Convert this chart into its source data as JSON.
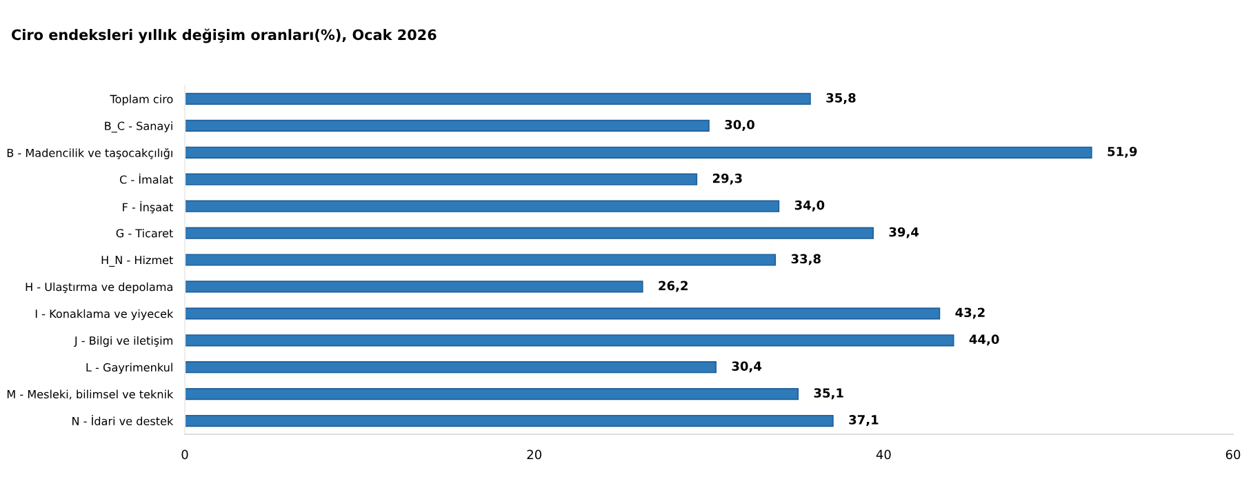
{
  "chart_data": {
    "type": "bar",
    "orientation": "horizontal",
    "title": "Ciro endeksleri yıllık değişim oranları(%), Ocak 2026",
    "categories": [
      "Toplam ciro",
      "B_C - Sanayi",
      "B - Madencilik ve taşocakçılığı",
      "C - İmalat",
      "F - İnşaat",
      "G - Ticaret",
      "H_N - Hizmet",
      "H - Ulaştırma ve depolama",
      "I - Konaklama ve yiyecek",
      "J - Bilgi ve iletişim",
      "L - Gayrimenkul",
      "M - Mesleki, bilimsel ve teknik",
      "N - İdari ve destek"
    ],
    "values": [
      35.8,
      30.0,
      51.9,
      29.3,
      34.0,
      39.4,
      33.8,
      26.2,
      43.2,
      44.0,
      30.4,
      35.1,
      37.1
    ],
    "value_labels": [
      "35,8",
      "30,0",
      "51,9",
      "29,3",
      "34,0",
      "39,4",
      "33,8",
      "26,2",
      "43,2",
      "44,0",
      "30,4",
      "35,1",
      "37,1"
    ],
    "color": "#2f7ab9",
    "xlim": [
      0,
      60
    ],
    "xticks": [
      0,
      20,
      40,
      60
    ],
    "grid": false,
    "legend": false
  }
}
